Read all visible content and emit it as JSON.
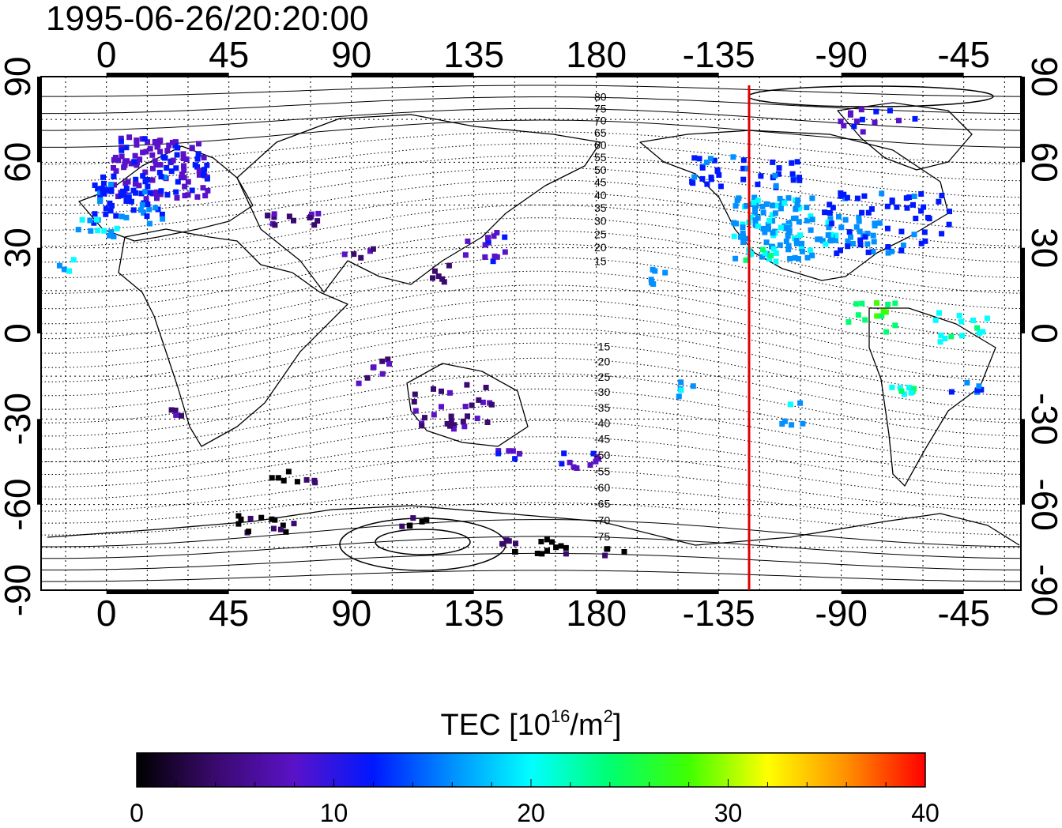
{
  "title": "1995-06-26/20:20:00",
  "map": {
    "type": "TEC world map",
    "x_ticks_top": [
      "0",
      "45",
      "90",
      "135",
      "180",
      "-135",
      "-90",
      "-45"
    ],
    "x_ticks_bottom": [
      "0",
      "45",
      "90",
      "135",
      "180",
      "-135",
      "-90",
      "-45"
    ],
    "y_ticks_left": [
      "90",
      "60",
      "30",
      "0",
      "-30",
      "-60",
      "-90"
    ],
    "y_ticks_right": [
      "90",
      "60",
      "30",
      "0",
      "-30",
      "-60",
      "-90"
    ],
    "contour_labels_north": [
      "80",
      "75",
      "70",
      "65",
      "60",
      "55",
      "50",
      "45",
      "40",
      "35",
      "30",
      "25",
      "20",
      "15"
    ],
    "contour_labels_south": [
      "-15",
      "-20",
      "-25",
      "-30",
      "-35",
      "-40",
      "-45",
      "-50",
      "-55",
      "-60",
      "-65",
      "-70",
      "-75"
    ],
    "marker_line_color": "#e00000",
    "grid": true
  },
  "colorbar": {
    "title_main": "TEC  [10",
    "title_sup1": "16",
    "title_mid": "/m",
    "title_sup2": "2",
    "title_end": "]",
    "tick_labels": [
      "0",
      "10",
      "20",
      "30",
      "40"
    ],
    "range": [
      0,
      40
    ],
    "colors": [
      "#000000",
      "#3a0a6e",
      "#5a12c8",
      "#0018ff",
      "#0090ff",
      "#00ffff",
      "#00ff70",
      "#40ff00",
      "#ffff00",
      "#ff9000",
      "#ff0000"
    ]
  }
}
